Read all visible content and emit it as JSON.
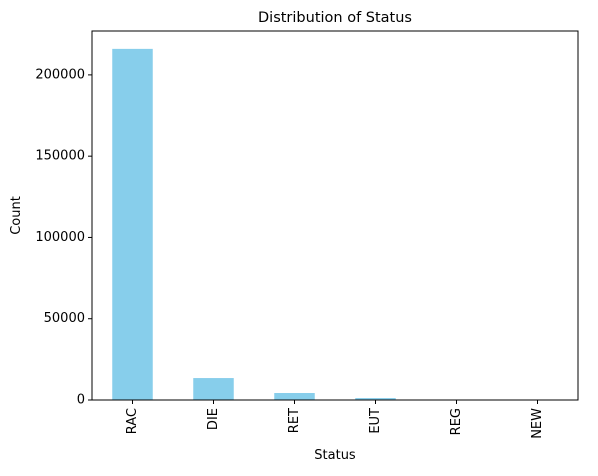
{
  "chart_data": {
    "type": "bar",
    "title": "Distribution of Status",
    "xlabel": "Status",
    "ylabel": "Count",
    "categories": [
      "RAC",
      "DIE",
      "RET",
      "EUT",
      "REG",
      "NEW"
    ],
    "values": [
      216000,
      13500,
      4300,
      1200,
      150,
      50
    ],
    "ylim": [
      0,
      227000
    ],
    "yticks": [
      0,
      50000,
      100000,
      150000,
      200000
    ],
    "ytick_labels": [
      "0",
      "50000",
      "100000",
      "150000",
      "200000"
    ],
    "grid": false,
    "legend": "none",
    "colors": {
      "bar": "#87CEEB",
      "axis": "#000000",
      "background": "#ffffff"
    }
  }
}
